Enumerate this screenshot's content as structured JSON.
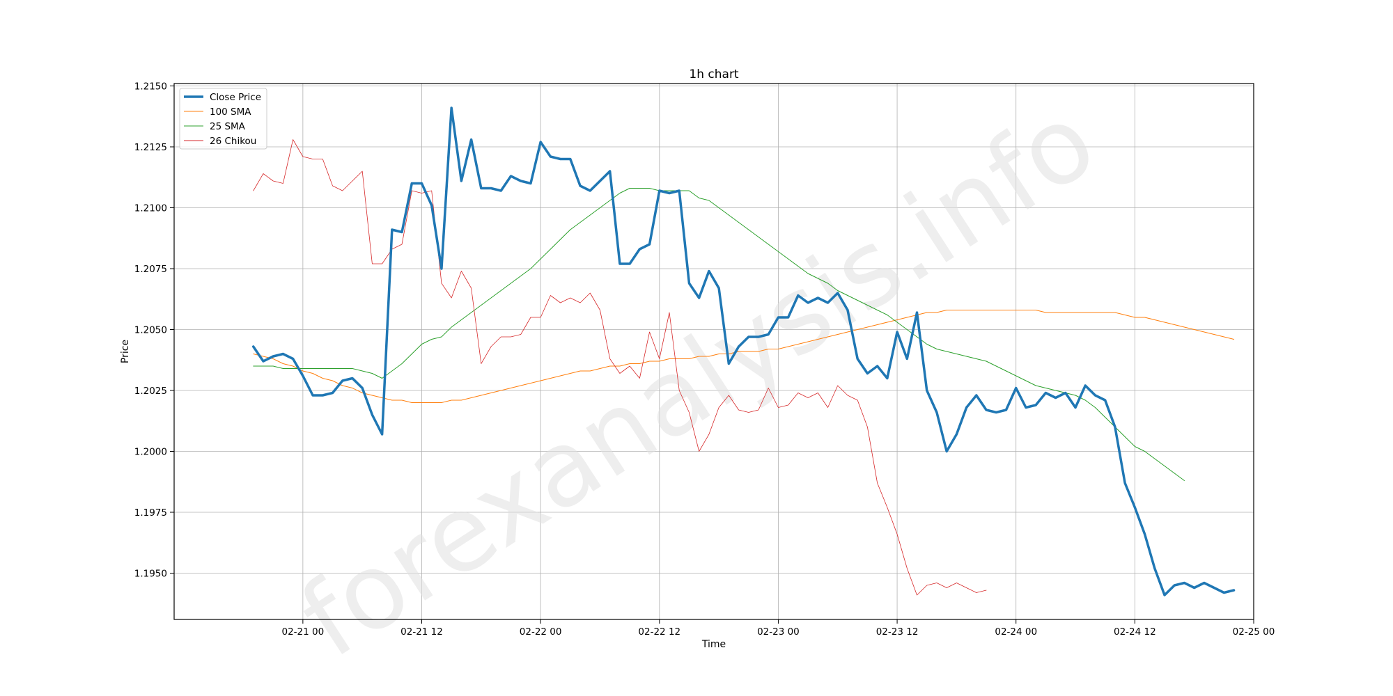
{
  "watermark": "forexanalysis.info",
  "chart_data": {
    "type": "line",
    "title": "1h chart",
    "xlabel": "Time",
    "ylabel": "Price",
    "ylim": [
      1.1931,
      1.2151
    ],
    "xlim": [
      -8,
      101
    ],
    "grid": true,
    "legend_position": "top-left",
    "x_ticks": [
      {
        "label": "02-21 00",
        "x": 5
      },
      {
        "label": "02-21 12",
        "x": 17
      },
      {
        "label": "02-22 00",
        "x": 29
      },
      {
        "label": "02-22 12",
        "x": 41
      },
      {
        "label": "02-23 00",
        "x": 53
      },
      {
        "label": "02-23 12",
        "x": 65
      },
      {
        "label": "02-24 00",
        "x": 77
      },
      {
        "label": "02-24 12",
        "x": 89
      },
      {
        "label": "02-25 00",
        "x": 101
      }
    ],
    "y_ticks": [
      "1.1950",
      "1.1975",
      "1.2000",
      "1.2025",
      "1.2050",
      "1.2075",
      "1.2100",
      "1.2125",
      "1.2150"
    ],
    "series": [
      {
        "name": "Close Price",
        "color": "#1f77b4",
        "width": 3.5,
        "x0": 0,
        "values": [
          1.2043,
          1.2037,
          1.2039,
          1.204,
          1.2038,
          1.2031,
          1.2023,
          1.2023,
          1.2024,
          1.2029,
          1.203,
          1.2026,
          1.2015,
          1.2007,
          1.2091,
          1.209,
          1.211,
          1.211,
          1.2101,
          1.2075,
          1.2141,
          1.2111,
          1.2128,
          1.2108,
          1.2108,
          1.2107,
          1.2113,
          1.2111,
          1.211,
          1.2127,
          1.2121,
          1.212,
          1.212,
          1.2109,
          1.2107,
          1.2111,
          1.2115,
          1.2077,
          1.2077,
          1.2083,
          1.2085,
          1.2107,
          1.2106,
          1.2107,
          1.2069,
          1.2063,
          1.2074,
          1.2067,
          1.2036,
          1.2043,
          1.2047,
          1.2047,
          1.2048,
          1.2055,
          1.2055,
          1.2064,
          1.2061,
          1.2063,
          1.2061,
          1.2065,
          1.2058,
          1.2038,
          1.2032,
          1.2035,
          1.203,
          1.2049,
          1.2038,
          1.2057,
          1.2025,
          1.2016,
          1.2,
          1.2007,
          1.2018,
          1.2023,
          1.2017,
          1.2016,
          1.2017,
          1.2026,
          1.2018,
          1.2019,
          1.2024,
          1.2022,
          1.2024,
          1.2018,
          1.2027,
          1.2023,
          1.2021,
          1.201,
          1.1987,
          1.1977,
          1.1966,
          1.1952,
          1.1941,
          1.1945,
          1.1946,
          1.1944,
          1.1946,
          1.1944,
          1.1942,
          1.1943
        ]
      },
      {
        "name": "100 SMA",
        "color": "#ff7f0e",
        "width": 1,
        "x0": 0,
        "values": [
          1.204,
          1.2039,
          1.2038,
          1.2036,
          1.2035,
          1.2033,
          1.2032,
          1.203,
          1.2029,
          1.2027,
          1.2026,
          1.2024,
          1.2023,
          1.2022,
          1.2021,
          1.2021,
          1.202,
          1.202,
          1.202,
          1.202,
          1.2021,
          1.2021,
          1.2022,
          1.2023,
          1.2024,
          1.2025,
          1.2026,
          1.2027,
          1.2028,
          1.2029,
          1.203,
          1.2031,
          1.2032,
          1.2033,
          1.2033,
          1.2034,
          1.2035,
          1.2035,
          1.2036,
          1.2036,
          1.2037,
          1.2037,
          1.2038,
          1.2038,
          1.2038,
          1.2039,
          1.2039,
          1.204,
          1.204,
          1.2041,
          1.2041,
          1.2041,
          1.2042,
          1.2042,
          1.2043,
          1.2044,
          1.2045,
          1.2046,
          1.2047,
          1.2048,
          1.2049,
          1.205,
          1.2051,
          1.2052,
          1.2053,
          1.2054,
          1.2055,
          1.2056,
          1.2057,
          1.2057,
          1.2058,
          1.2058,
          1.2058,
          1.2058,
          1.2058,
          1.2058,
          1.2058,
          1.2058,
          1.2058,
          1.2058,
          1.2057,
          1.2057,
          1.2057,
          1.2057,
          1.2057,
          1.2057,
          1.2057,
          1.2057,
          1.2056,
          1.2055,
          1.2055,
          1.2054,
          1.2053,
          1.2052,
          1.2051,
          1.205,
          1.2049,
          1.2048,
          1.2047,
          1.2046
        ]
      },
      {
        "name": "25 SMA",
        "color": "#2ca02c",
        "width": 1,
        "x0": 0,
        "values": [
          1.2035,
          1.2035,
          1.2035,
          1.2034,
          1.2034,
          1.2034,
          1.2034,
          1.2034,
          1.2034,
          1.2034,
          1.2034,
          1.2033,
          1.2032,
          1.203,
          1.2033,
          1.2036,
          1.204,
          1.2044,
          1.2046,
          1.2047,
          1.2051,
          1.2054,
          1.2057,
          1.206,
          1.2063,
          1.2066,
          1.2069,
          1.2072,
          1.2075,
          1.2079,
          1.2083,
          1.2087,
          1.2091,
          1.2094,
          1.2097,
          1.21,
          1.2103,
          1.2106,
          1.2108,
          1.2108,
          1.2108,
          1.2107,
          1.2107,
          1.2107,
          1.2107,
          1.2104,
          1.2103,
          1.21,
          1.2097,
          1.2094,
          1.2091,
          1.2088,
          1.2085,
          1.2082,
          1.2079,
          1.2076,
          1.2073,
          1.2071,
          1.2069,
          1.2066,
          1.2064,
          1.2062,
          1.206,
          1.2058,
          1.2056,
          1.2053,
          1.205,
          1.2047,
          1.2044,
          1.2042,
          1.2041,
          1.204,
          1.2039,
          1.2038,
          1.2037,
          1.2035,
          1.2033,
          1.2031,
          1.2029,
          1.2027,
          1.2026,
          1.2025,
          1.2024,
          1.2023,
          1.2021,
          1.2018,
          1.2014,
          1.201,
          1.2006,
          1.2002,
          1.2,
          1.1997,
          1.1994,
          1.1991,
          1.1988
        ]
      },
      {
        "name": "26 Chikou",
        "color": "#d62728",
        "width": 0.8,
        "x0": 0,
        "values": [
          1.2107,
          1.2114,
          1.2111,
          1.211,
          1.2128,
          1.2121,
          1.212,
          1.212,
          1.2109,
          1.2107,
          1.2111,
          1.2115,
          1.2077,
          1.2077,
          1.2083,
          1.2085,
          1.2107,
          1.2106,
          1.2107,
          1.2069,
          1.2063,
          1.2074,
          1.2067,
          1.2036,
          1.2043,
          1.2047,
          1.2047,
          1.2048,
          1.2055,
          1.2055,
          1.2064,
          1.2061,
          1.2063,
          1.2061,
          1.2065,
          1.2058,
          1.2038,
          1.2032,
          1.2035,
          1.203,
          1.2049,
          1.2038,
          1.2057,
          1.2025,
          1.2016,
          1.2,
          1.2007,
          1.2018,
          1.2023,
          1.2017,
          1.2016,
          1.2017,
          1.2026,
          1.2018,
          1.2019,
          1.2024,
          1.2022,
          1.2024,
          1.2018,
          1.2027,
          1.2023,
          1.2021,
          1.201,
          1.1987,
          1.1977,
          1.1966,
          1.1952,
          1.1941,
          1.1945,
          1.1946,
          1.1944,
          1.1946,
          1.1944,
          1.1942,
          1.1943
        ]
      }
    ]
  }
}
